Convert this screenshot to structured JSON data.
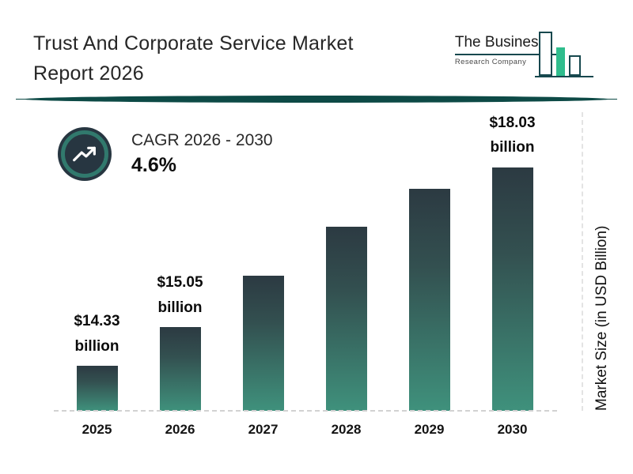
{
  "header": {
    "title_line1": "Trust And Corporate Service Market",
    "title_line2": "Report 2026"
  },
  "logo": {
    "line1": "The Business",
    "line2": "Research Company"
  },
  "cagr": {
    "label": "CAGR 2026 - 2030",
    "value": "4.6%"
  },
  "chart_data": {
    "type": "bar",
    "title": "Trust And Corporate Service Market Report 2026",
    "ylabel": "Market Size (in USD Billion)",
    "xlabel": "",
    "categories": [
      "2025",
      "2026",
      "2027",
      "2028",
      "2029",
      "2030"
    ],
    "values": [
      14.33,
      15.05,
      16.0,
      16.9,
      17.6,
      18.03
    ],
    "bar_labels": [
      {
        "amount": "$14.33",
        "unit": "billion"
      },
      {
        "amount": "$15.05",
        "unit": "billion"
      },
      null,
      null,
      null,
      {
        "amount": "$18.03",
        "unit": "billion"
      }
    ],
    "cagr_2026_2030": "4.6%",
    "currency": "USD",
    "legend": "none",
    "grid": "off",
    "axis": {
      "baseline_value": 13.5,
      "max_value": 18.03
    },
    "colors": {
      "bar_gradient_top": "#2c3a42",
      "bar_gradient_bottom": "#3f917c",
      "divider_teal": "#0d4a46",
      "logo_green": "#2fbd8d",
      "logo_outline": "#17484e",
      "cagr_circle_navy": "#273641",
      "cagr_ring_teal": "#31796d"
    }
  }
}
